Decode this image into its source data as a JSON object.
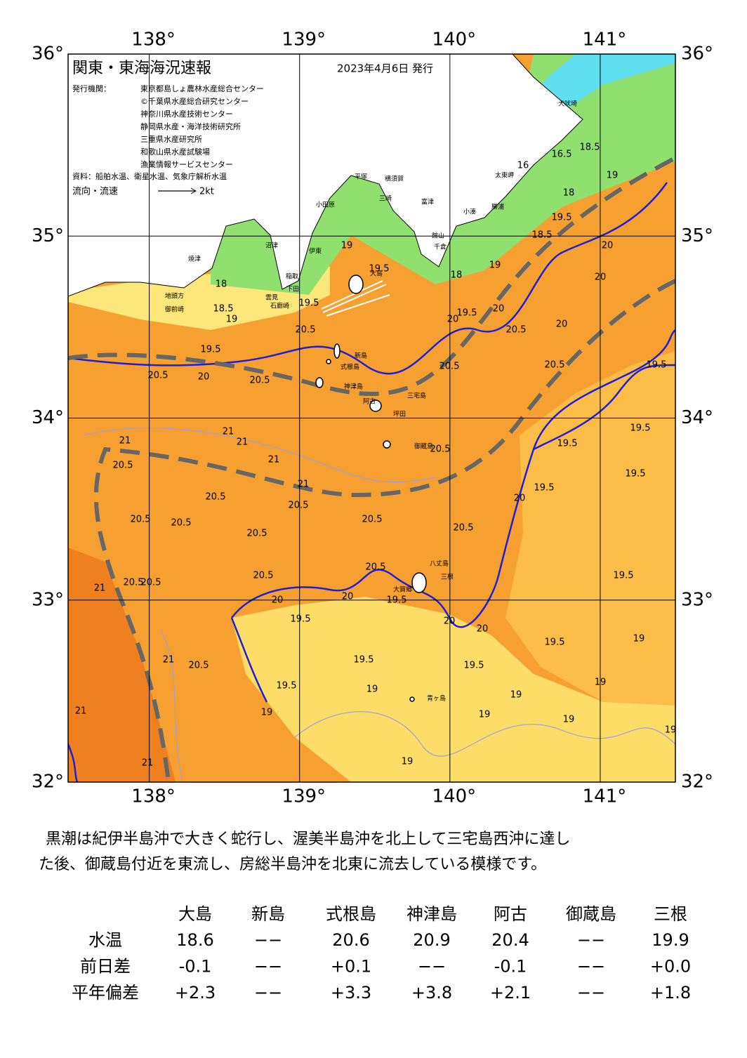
{
  "header": {
    "title": "関東・東海海況速報",
    "date": "2023年4月6日 発行",
    "issuer_label": "発行機関：",
    "issuers": [
      "東京都島しょ農林水産総合センター",
      "©千葉県水産総合研究センター",
      "神奈川県水産技術センター",
      "静岡県水産・海洋技術研究所",
      "三重県水産研究所",
      "和歌山県水産試験場",
      "漁業情報サービスセンター"
    ],
    "source": "資料：船舶水温、衛星水温、気象庁解析水温",
    "flow_label": "流向・流速",
    "flow_scale": "2kt"
  },
  "map": {
    "lon_ticks": [
      {
        "value": 138,
        "label": "138°"
      },
      {
        "value": 139,
        "label": "139°"
      },
      {
        "value": 140,
        "label": "140°"
      },
      {
        "value": 141,
        "label": "141°"
      }
    ],
    "lat_ticks": [
      {
        "value": 36,
        "label": "36°"
      },
      {
        "value": 35,
        "label": "35°"
      },
      {
        "value": 34,
        "label": "34°"
      },
      {
        "value": 33,
        "label": "33°"
      },
      {
        "value": 32,
        "label": "32°"
      }
    ],
    "lonlim": [
      137.46,
      141.5
    ],
    "latlim": [
      32,
      36
    ],
    "place_names": [
      "犬吠埼",
      "太東岬",
      "勝浦",
      "小湊",
      "館山",
      "千倉",
      "富津",
      "横須賀",
      "三崎",
      "平塚",
      "小田原",
      "伊東",
      "沼津",
      "焼津",
      "稲取",
      "下田",
      "石廊崎",
      "雲見",
      "地頭方",
      "御前崎",
      "大島",
      "新島",
      "式根島",
      "神津島",
      "三宅島",
      "阿古",
      "坪田",
      "御蔵島",
      "八丈島",
      "三根",
      "大賀郷",
      "青ヶ島"
    ],
    "isotherm_labels": [
      18.5,
      19,
      16,
      16.5,
      18,
      18.5,
      19.5,
      20,
      20,
      19,
      18,
      19.5,
      19,
      19.5,
      20.5,
      18.5,
      19,
      18,
      19.5,
      20.5,
      20,
      20.5,
      20,
      19.5,
      20,
      20.5,
      20.5,
      20.5,
      20,
      19.5,
      21,
      21,
      21,
      21,
      21,
      20.5,
      20.5,
      20.5,
      20.5,
      20.5,
      20.5,
      20.5,
      20.5,
      20.5,
      19.5,
      19.5,
      19.5,
      19.5,
      20,
      20.5,
      20,
      19.5,
      20,
      20.5,
      19.5,
      20.5,
      20.5,
      21,
      20.5,
      21,
      19.5,
      19.5,
      19.5,
      19.5,
      19.5,
      20,
      20,
      19,
      19,
      19,
      19,
      19,
      19,
      19,
      19,
      19,
      21,
      21
    ]
  },
  "description": [
    "黒潮は紀伊半島沖で大きく蛇行し、渥美半島沖を北上して三宅島西沖に達し",
    "た後、御蔵島付近を東流し、房総半島沖を北東に流去している模様です。"
  ],
  "table": {
    "columns": [
      "大島",
      "新島",
      "式根島",
      "神津島",
      "阿古",
      "御蔵島",
      "三根"
    ],
    "rows": [
      {
        "label": "水温",
        "cells": [
          "18.6",
          "−−",
          "20.6",
          "20.9",
          "20.4",
          "−−",
          "19.9"
        ]
      },
      {
        "label": "前日差",
        "cells": [
          "-0.1",
          "−−",
          "+0.1",
          "−−",
          "-0.1",
          "−−",
          "+0.0"
        ]
      },
      {
        "label": "平年偏差",
        "cells": [
          "+2.3",
          "−−",
          "+3.3",
          "+3.8",
          "+2.1",
          "−−",
          "+1.8"
        ]
      }
    ]
  }
}
